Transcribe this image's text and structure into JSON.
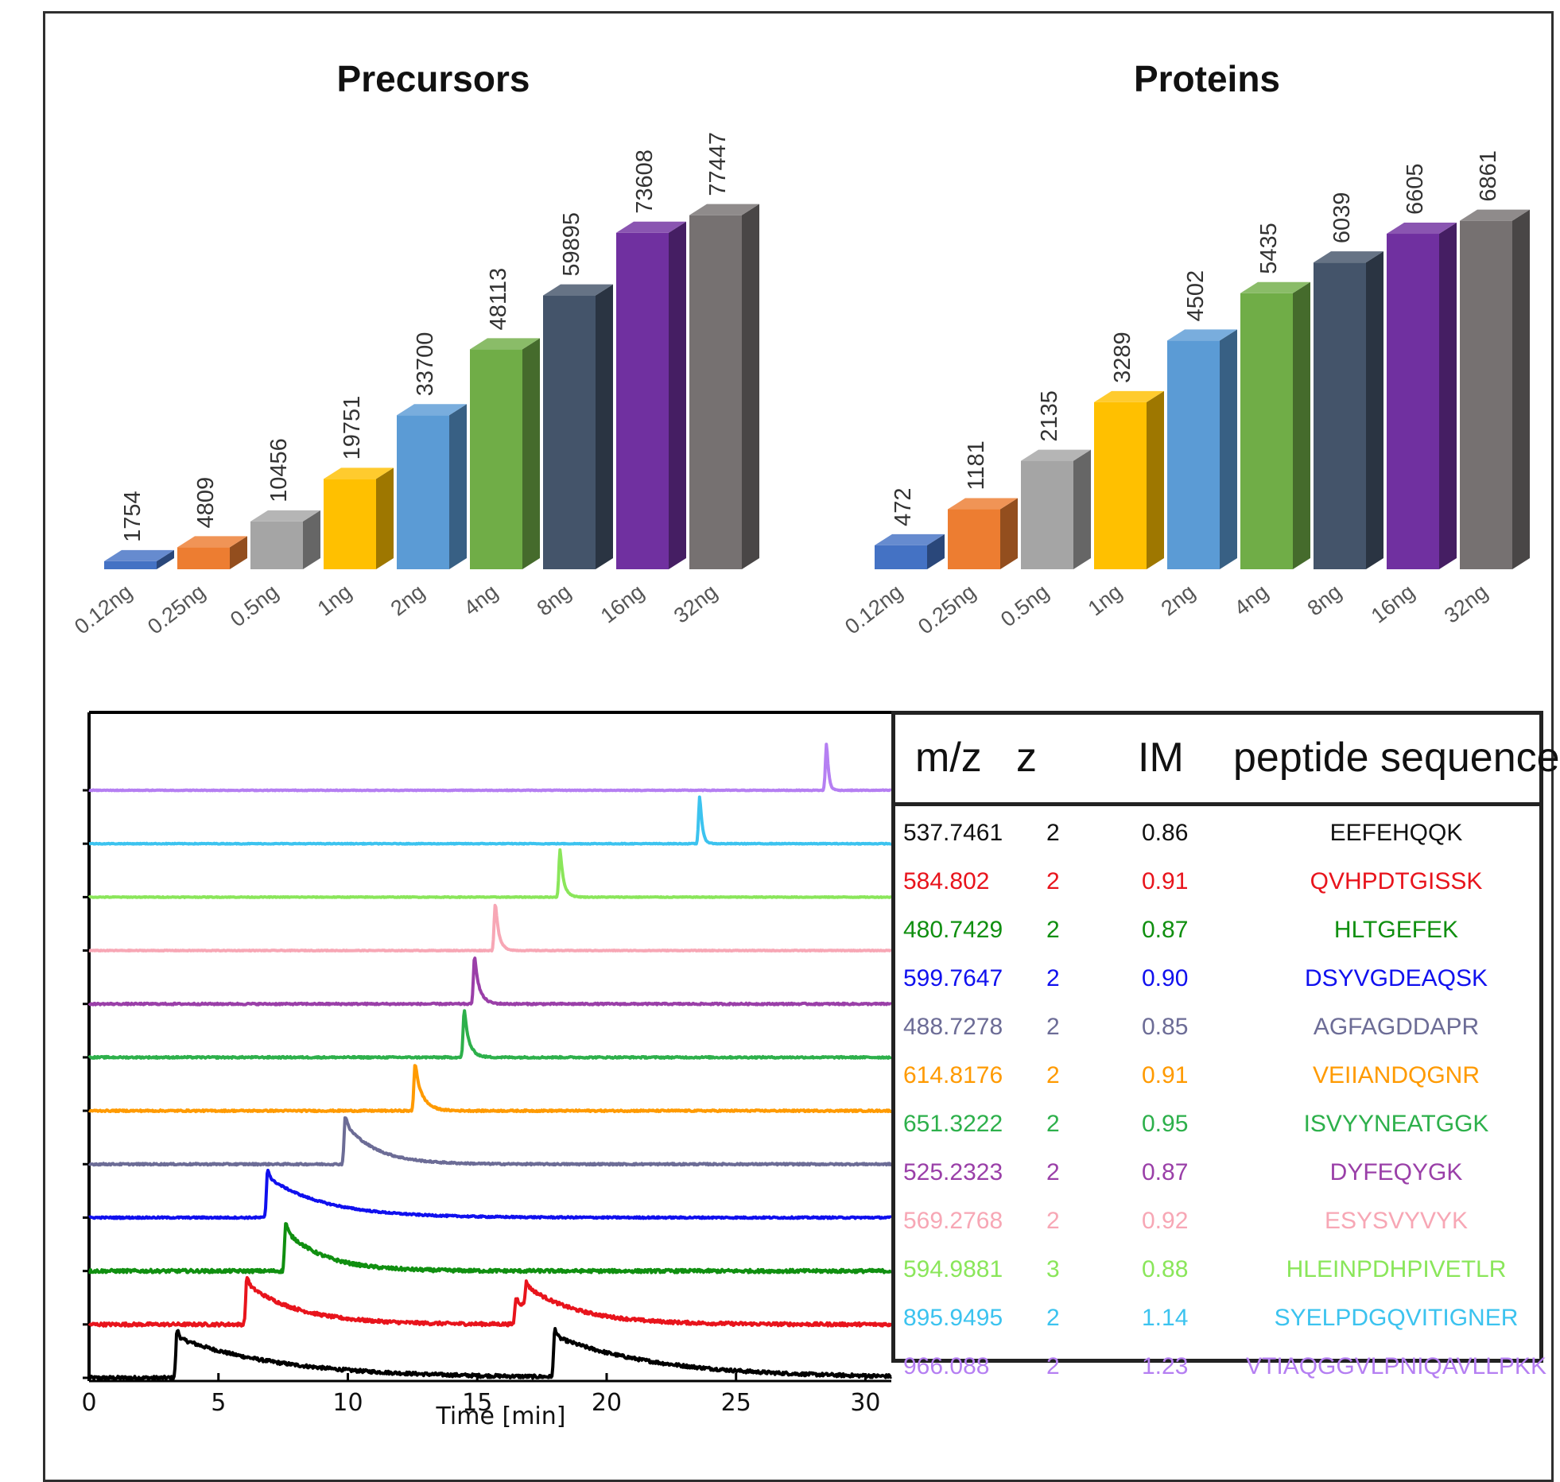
{
  "chart_data": [
    {
      "type": "bar",
      "title": "Precursors",
      "categories": [
        "0.12ng",
        "0.25ng",
        "0.5ng",
        "1ng",
        "2ng",
        "4ng",
        "8ng",
        "16ng",
        "32ng"
      ],
      "values": [
        1754,
        4809,
        10456,
        19751,
        33700,
        48113,
        59895,
        73608,
        77447
      ],
      "value_labels": [
        "1754",
        "4809",
        "10456",
        "19751",
        "33700",
        "48113",
        "59895",
        "73608",
        "77447"
      ],
      "colors": [
        "#4472c4",
        "#ed7d31",
        "#a5a5a5",
        "#ffc000",
        "#5b9bd5",
        "#70ad47",
        "#44546a",
        "#7030a0",
        "#767171"
      ],
      "ylim": [
        0,
        80000
      ],
      "grid": false,
      "style": "3d-columns"
    },
    {
      "type": "bar",
      "title": "Proteins",
      "categories": [
        "0.12ng",
        "0.25ng",
        "0.5ng",
        "1ng",
        "2ng",
        "4ng",
        "8ng",
        "16ng",
        "32ng"
      ],
      "values": [
        472,
        1181,
        2135,
        3289,
        4502,
        5435,
        6039,
        6605,
        6861
      ],
      "value_labels": [
        "472",
        "1181",
        "2135",
        "3289",
        "4502",
        "5435",
        "6039",
        "6605",
        "6861"
      ],
      "colors": [
        "#4472c4",
        "#ed7d31",
        "#a5a5a5",
        "#ffc000",
        "#5b9bd5",
        "#70ad47",
        "#44546a",
        "#7030a0",
        "#767171"
      ],
      "ylim": [
        0,
        7200
      ],
      "grid": false,
      "style": "3d-columns"
    },
    {
      "type": "line",
      "title": "",
      "xlabel": "Time [min]",
      "ylabel": "",
      "xlim": [
        0,
        31
      ],
      "x_ticks": [
        "0",
        "5",
        "10",
        "15",
        "20",
        "25",
        "30"
      ],
      "stacked_offset": true,
      "series": [
        {
          "color": "#000000",
          "peak_times": [
            3.4,
            18.0
          ],
          "peak_heights": [
            1.0,
            1.0
          ],
          "tail": 4.0
        },
        {
          "color": "#e8141c",
          "peak_times": [
            6.1,
            16.5,
            16.9
          ],
          "peak_heights": [
            1.0,
            0.55,
            0.5
          ],
          "tail": 2.0
        },
        {
          "color": "#108f10",
          "peak_times": [
            7.6
          ],
          "peak_heights": [
            1.0
          ],
          "tail": 1.5
        },
        {
          "color": "#1010ee",
          "peak_times": [
            6.9
          ],
          "peak_heights": [
            1.0
          ],
          "tail": 2.2
        },
        {
          "color": "#6c6c96",
          "peak_times": [
            9.9
          ],
          "peak_heights": [
            1.0
          ],
          "tail": 1.2
        },
        {
          "color": "#ff9a00",
          "peak_times": [
            12.6
          ],
          "peak_heights": [
            1.0
          ],
          "tail": 0.3
        },
        {
          "color": "#2db04b",
          "peak_times": [
            14.5
          ],
          "peak_heights": [
            1.0
          ],
          "tail": 0.2
        },
        {
          "color": "#9a3fa8",
          "peak_times": [
            14.9
          ],
          "peak_heights": [
            1.0
          ],
          "tail": 0.2
        },
        {
          "color": "#f7a7b5",
          "peak_times": [
            15.7
          ],
          "peak_heights": [
            1.0
          ],
          "tail": 0.15
        },
        {
          "color": "#8ae65a",
          "peak_times": [
            18.2
          ],
          "peak_heights": [
            1.0
          ],
          "tail": 0.15
        },
        {
          "color": "#3cc3ef",
          "peak_times": [
            23.6
          ],
          "peak_heights": [
            1.0
          ],
          "tail": 0.1
        },
        {
          "color": "#b57ff2",
          "peak_times": [
            28.5
          ],
          "peak_heights": [
            1.0
          ],
          "tail": 0.08
        }
      ]
    },
    {
      "type": "table",
      "columns": [
        "m/z",
        "z",
        "IM",
        "peptide sequence"
      ],
      "rows": [
        {
          "mz": "537.7461",
          "z": "2",
          "im": "0.86",
          "seq": "EEFEHQQK",
          "color": "#111111"
        },
        {
          "mz": "584.802",
          "z": "2",
          "im": "0.91",
          "seq": "QVHPDTGISSK",
          "color": "#e8141c"
        },
        {
          "mz": "480.7429",
          "z": "2",
          "im": "0.87",
          "seq": "HLTGEFEK",
          "color": "#108f10"
        },
        {
          "mz": "599.7647",
          "z": "2",
          "im": "0.90",
          "seq": "DSYVGDEAQSK",
          "color": "#1010ee"
        },
        {
          "mz": "488.7278",
          "z": "2",
          "im": "0.85",
          "seq": "AGFAGDDAPR",
          "color": "#6c6c96"
        },
        {
          "mz": "614.8176",
          "z": "2",
          "im": "0.91",
          "seq": "VEIIANDQGNR",
          "color": "#ff9a00"
        },
        {
          "mz": "651.3222",
          "z": "2",
          "im": "0.95",
          "seq": "ISVYYNEATGGK",
          "color": "#2db04b"
        },
        {
          "mz": "525.2323",
          "z": "2",
          "im": "0.87",
          "seq": "DYFEQYGK",
          "color": "#9a3fa8"
        },
        {
          "mz": "569.2768",
          "z": "2",
          "im": "0.92",
          "seq": "ESYSVYVYK",
          "color": "#f7a7b5"
        },
        {
          "mz": "594.9881",
          "z": "3",
          "im": "0.88",
          "seq": "HLEINPDHPIVETLR",
          "color": "#8ae65a"
        },
        {
          "mz": "895.9495",
          "z": "2",
          "im": "1.14",
          "seq": "SYELPDGQVITIGNER",
          "color": "#3cc3ef"
        },
        {
          "mz": "966.088",
          "z": "2",
          "im": "1.23",
          "seq": "VTIAQGGVLPNIQAVLLPKK",
          "color": "#b57ff2"
        }
      ]
    }
  ]
}
